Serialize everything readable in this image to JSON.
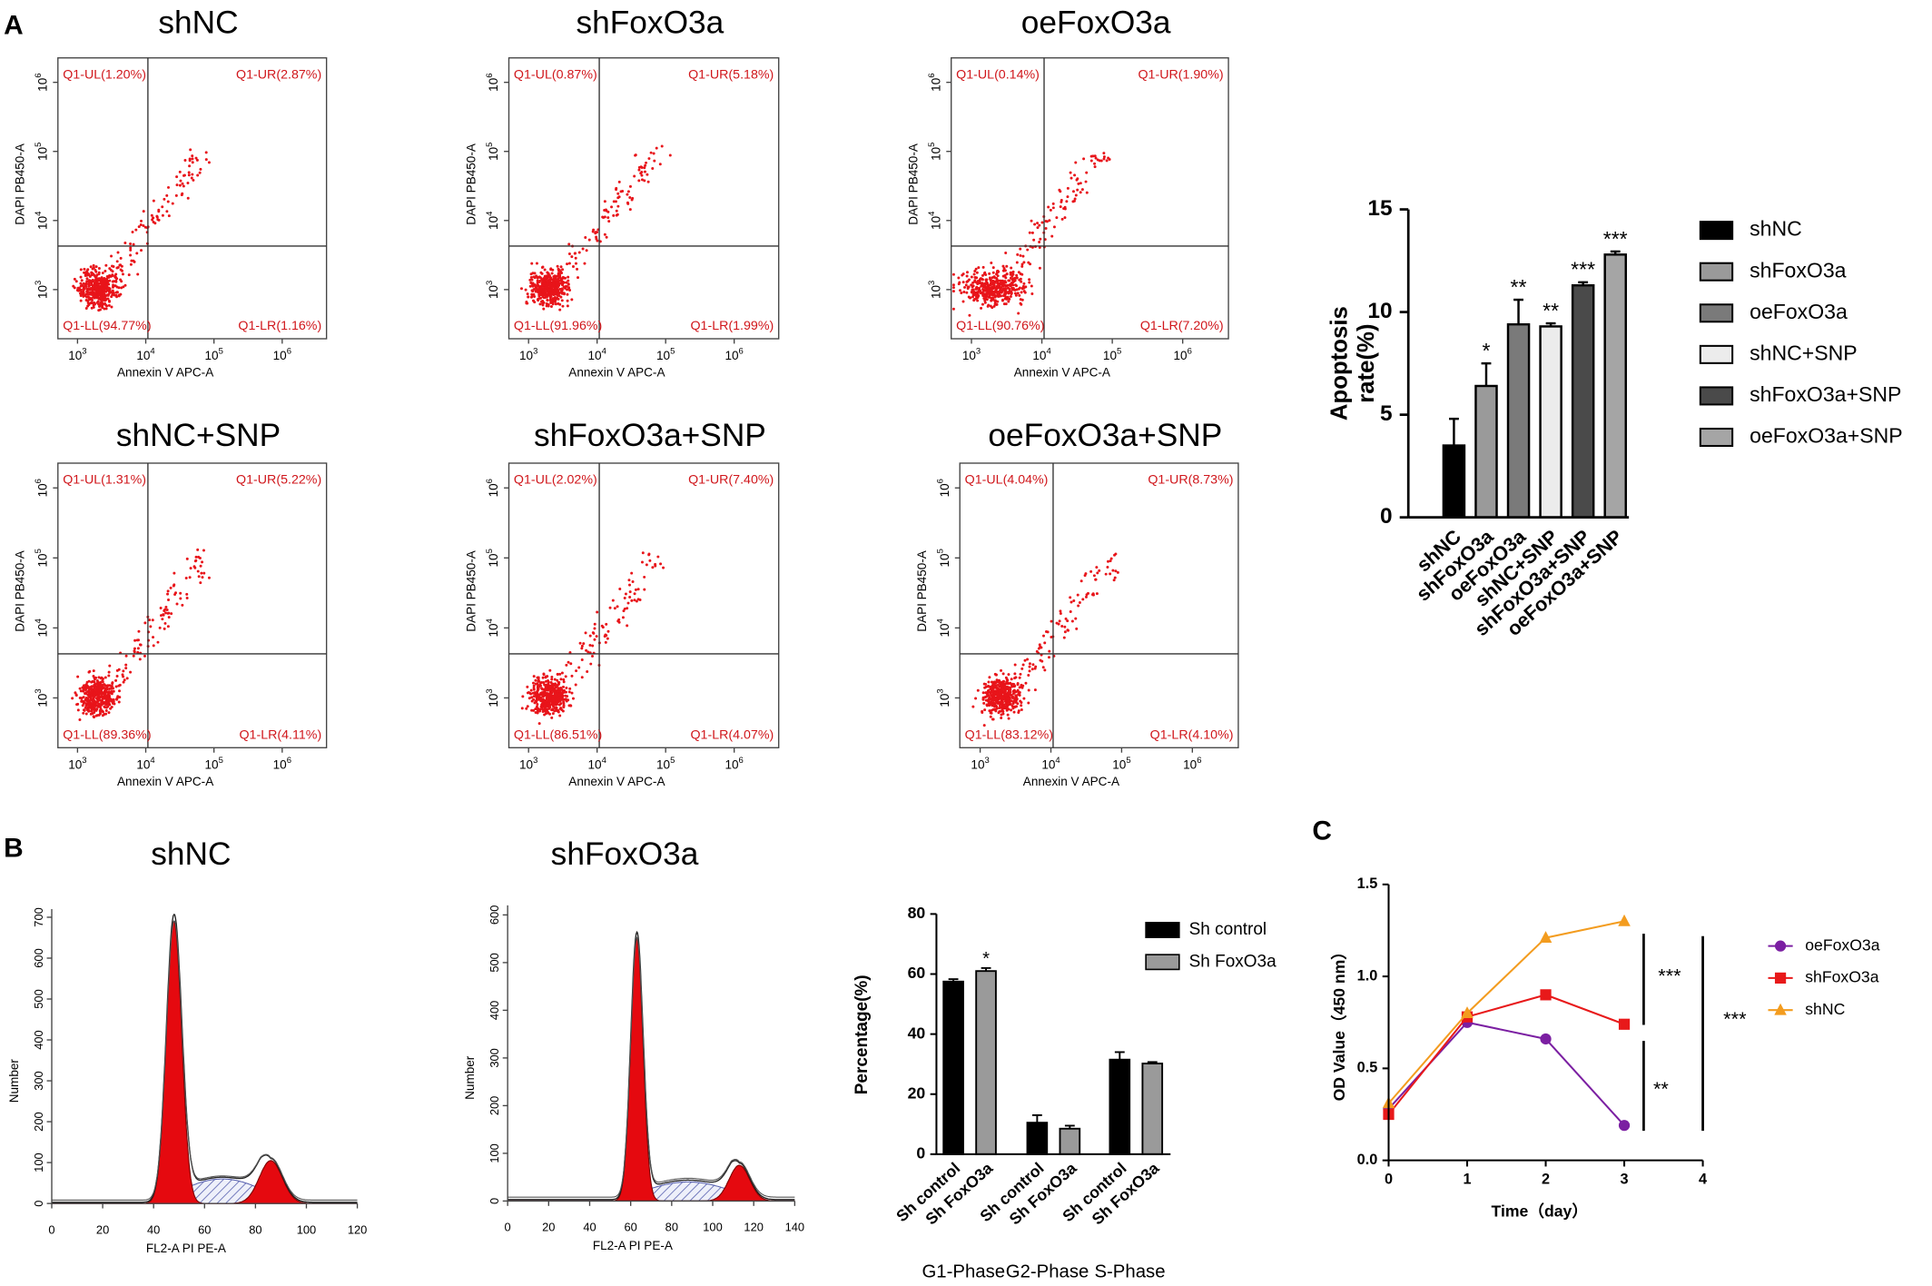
{
  "panel_labels": [
    "A",
    "B",
    "C"
  ],
  "flow_axes": {
    "xlabel": "Annexin V APC-A",
    "ylabel": "DAPI PB450-A",
    "xticks": [
      {
        "base": "10",
        "exp": "3"
      },
      {
        "base": "10",
        "exp": "4"
      },
      {
        "base": "10",
        "exp": "5"
      },
      {
        "base": "10",
        "exp": "6"
      }
    ],
    "yticks": [
      {
        "base": "10",
        "exp": "3"
      },
      {
        "base": "10",
        "exp": "4"
      },
      {
        "base": "10",
        "exp": "5"
      },
      {
        "base": "10",
        "exp": "6"
      }
    ]
  },
  "flow_plots": [
    {
      "title": "shNC",
      "ul": "Q1-UL(1.20%)",
      "ur": "Q1-UR(2.87%)",
      "ll": "Q1-LL(94.77%)",
      "lr": "Q1-LR(1.16%)"
    },
    {
      "title": "shFoxO3a",
      "ul": "Q1-UL(0.87%)",
      "ur": "Q1-UR(5.18%)",
      "ll": "Q1-LL(91.96%)",
      "lr": "Q1-LR(1.99%)"
    },
    {
      "title": "oeFoxO3a",
      "ul": "Q1-UL(0.14%)",
      "ur": "Q1-UR(1.90%)",
      "ll": "Q1-LL(90.76%)",
      "lr": "Q1-LR(7.20%)"
    },
    {
      "title": "shNC+SNP",
      "ul": "Q1-UL(1.31%)",
      "ur": "Q1-UR(5.22%)",
      "ll": "Q1-LL(89.36%)",
      "lr": "Q1-LR(4.11%)"
    },
    {
      "title": "shFoxO3a+SNP",
      "ul": "Q1-UL(2.02%)",
      "ur": "Q1-UR(7.40%)",
      "ll": "Q1-LL(86.51%)",
      "lr": "Q1-LR(4.07%)"
    },
    {
      "title": "oeFoxO3a+SNP",
      "ul": "Q1-UL(4.04%)",
      "ur": "Q1-UR(8.73%)",
      "ll": "Q1-LL(83.12%)",
      "lr": "Q1-LR(4.10%)"
    }
  ],
  "histograms": [
    {
      "title": "shNC",
      "xlabel": "FL2-A PI PE-A",
      "ylabel": "Number",
      "xlim": [
        0,
        120
      ],
      "xticks": [
        0,
        20,
        40,
        60,
        80,
        100,
        120
      ],
      "ylim": [
        0,
        720
      ],
      "yticks": [
        0,
        100,
        200,
        300,
        400,
        500,
        600,
        700
      ],
      "g1": {
        "center": 48,
        "height": 690,
        "sd": 3
      },
      "g2": {
        "center": 86,
        "height": 105,
        "sd": 4.5
      },
      "s_phase": {
        "start": 48,
        "end": 86,
        "height": 60
      }
    },
    {
      "title": "shFoxO3a",
      "xlabel": "FL2-A PI PE-A",
      "ylabel": "Number",
      "xlim": [
        0,
        140
      ],
      "xticks": [
        0,
        20,
        40,
        60,
        80,
        100,
        120,
        140
      ],
      "ylim": [
        0,
        620
      ],
      "yticks": [
        0,
        100,
        200,
        300,
        400,
        500,
        600
      ],
      "g1": {
        "center": 63,
        "height": 550,
        "sd": 3
      },
      "g2": {
        "center": 113,
        "height": 75,
        "sd": 5
      },
      "s_phase": {
        "start": 63,
        "end": 113,
        "height": 40
      }
    }
  ],
  "chart_data": [
    {
      "type": "bar",
      "ylabel_lines": [
        "Apoptosis",
        "rate(%)"
      ],
      "categories": [
        "shNC",
        "shFoxO3a",
        "oeFoxO3a",
        "shNC+SNP",
        "shFoxO3a+SNP",
        "oeFoxO3a+SNP"
      ],
      "values": [
        3.5,
        6.4,
        9.4,
        9.3,
        11.3,
        12.8
      ],
      "errors": [
        1.3,
        1.1,
        1.2,
        0.15,
        0.15,
        0.15
      ],
      "significance": [
        null,
        "*",
        "**",
        "**",
        "***",
        "***"
      ],
      "colors": [
        "#000000",
        "#9a9a9a",
        "#7a7a7a",
        "#ececec",
        "#4a4a4a",
        "#a5a5a5"
      ],
      "ylim": [
        0,
        15
      ],
      "yticks": [
        0,
        5,
        10,
        15
      ]
    },
    {
      "type": "grouped_bar",
      "ylabel": "Percentage(%)",
      "categories": [
        "G1-Phase",
        "G2-Phase",
        "S-Phase"
      ],
      "series": [
        {
          "name": "Sh control",
          "color": "#000000",
          "values": [
            57.5,
            10.5,
            31.5
          ],
          "errors": [
            0.8,
            2.5,
            2.5
          ],
          "significance": [
            null,
            null,
            null
          ]
        },
        {
          "name": "Sh FoxO3a",
          "color": "#9a9a9a",
          "values": [
            61,
            8.5,
            30.2
          ],
          "errors": [
            1,
            1,
            0.5
          ],
          "significance": [
            "*",
            null,
            null
          ]
        }
      ],
      "ylim": [
        0,
        80
      ],
      "yticks": [
        0,
        20,
        40,
        60,
        80
      ]
    },
    {
      "type": "line",
      "xlabel": "Time（day）",
      "ylabel": "OD Value（450 nm）",
      "x": [
        0,
        1,
        2,
        3
      ],
      "series": [
        {
          "name": "oeFoxO3a",
          "color": "#7b1fa2",
          "marker": "circle",
          "values": [
            0.28,
            0.75,
            0.66,
            0.19
          ]
        },
        {
          "name": "shFoxO3a",
          "color": "#e8191a",
          "marker": "square",
          "values": [
            0.25,
            0.78,
            0.9,
            0.74
          ]
        },
        {
          "name": "shNC",
          "color": "#f39c1f",
          "marker": "triangle",
          "values": [
            0.31,
            0.8,
            1.21,
            1.3
          ]
        }
      ],
      "annotations": [
        "***",
        "**",
        "***"
      ],
      "xlim": [
        0,
        4
      ],
      "xticks": [
        0,
        1,
        2,
        3,
        4
      ],
      "ylim": [
        0,
        1.5
      ],
      "yticks": [
        {
          "value": 0,
          "label": "0.0"
        },
        0.5,
        {
          "value": 1,
          "label": "1.0"
        },
        1.5
      ]
    }
  ]
}
